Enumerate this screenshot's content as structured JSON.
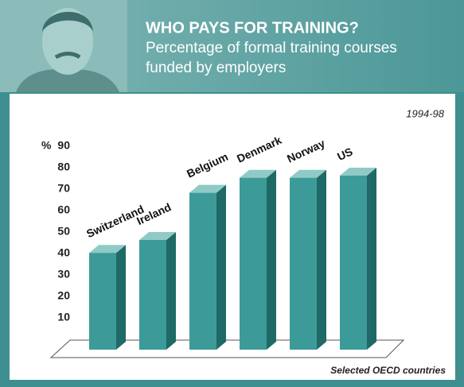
{
  "chart_data": {
    "type": "bar3d",
    "title": "WHO PAYS FOR TRAINING?",
    "subtitle": "Percentage of formal training courses funded by employers",
    "period": "1994-98",
    "y_label": "%",
    "x_label": "Selected OECD countries",
    "categories": [
      "Switzerland",
      "Ireland",
      "Belgium",
      "Denmark",
      "Norway",
      "US"
    ],
    "values": [
      44,
      50,
      72,
      79,
      79,
      80
    ],
    "color": "#3c9b98",
    "ylim": [
      0,
      90
    ],
    "yticks": [
      10,
      20,
      30,
      40,
      50,
      60,
      70,
      80,
      90
    ]
  }
}
